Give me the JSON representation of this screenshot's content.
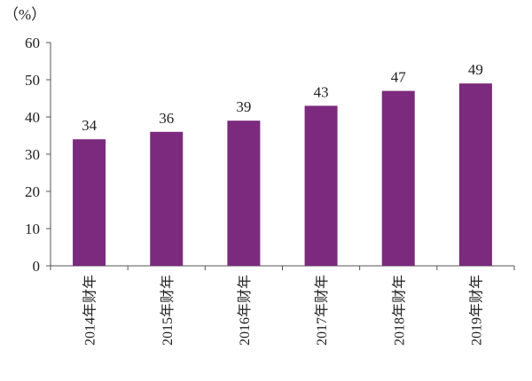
{
  "chart_data": {
    "type": "bar",
    "unit_label": "（%）",
    "categories": [
      "2014年财年",
      "2015年财年",
      "2016年财年",
      "2017年财年",
      "2018年财年",
      "2019年财年"
    ],
    "values": [
      34,
      36,
      39,
      43,
      47,
      49
    ],
    "data_labels": [
      "34",
      "36",
      "39",
      "43",
      "47",
      "49"
    ],
    "ylim": [
      0,
      60
    ],
    "yticks": [
      0,
      10,
      20,
      30,
      40,
      50,
      60
    ],
    "ytick_labels": [
      "0",
      "10",
      "20",
      "30",
      "40",
      "50",
      "60"
    ],
    "bar_color": "#7b2a7d",
    "grid": false,
    "legend": "none"
  }
}
